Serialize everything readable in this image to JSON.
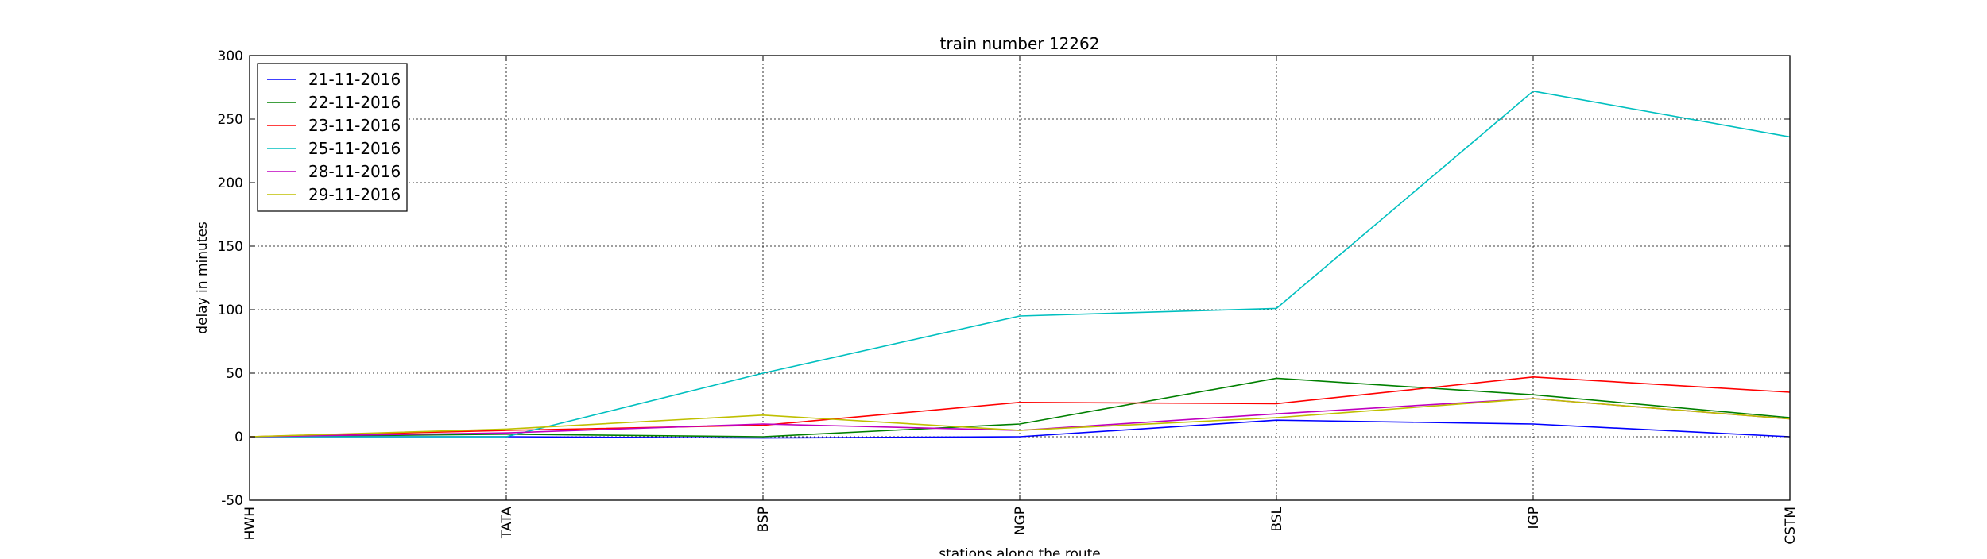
{
  "chart_data": {
    "type": "line",
    "title": "train number 12262",
    "xlabel": "stations along the route",
    "ylabel": "delay in minutes",
    "categories": [
      "HWH",
      "TATA",
      "BSP",
      "NGP",
      "BSL",
      "IGP",
      "CSTM"
    ],
    "ylim": [
      -50,
      300
    ],
    "yticks": [
      -50,
      0,
      50,
      100,
      150,
      200,
      250,
      300
    ],
    "grid": true,
    "legend_position": "top-left",
    "series": [
      {
        "name": "21-11-2016",
        "color": "#0000ff",
        "values": [
          0,
          0,
          -1,
          0,
          13,
          10,
          0
        ]
      },
      {
        "name": "22-11-2016",
        "color": "#008000",
        "values": [
          0,
          2,
          0,
          10,
          46,
          33,
          15
        ]
      },
      {
        "name": "23-11-2016",
        "color": "#ff0000",
        "values": [
          0,
          5,
          9,
          27,
          26,
          47,
          35
        ]
      },
      {
        "name": "25-11-2016",
        "color": "#00bfbf",
        "values": [
          0,
          0,
          50,
          95,
          101,
          272,
          236
        ]
      },
      {
        "name": "28-11-2016",
        "color": "#bf00bf",
        "values": [
          0,
          3,
          10,
          5,
          18,
          30,
          14
        ]
      },
      {
        "name": "29-11-2016",
        "color": "#bfbf00",
        "values": [
          0,
          6,
          17,
          5,
          15,
          30,
          14
        ]
      }
    ]
  }
}
